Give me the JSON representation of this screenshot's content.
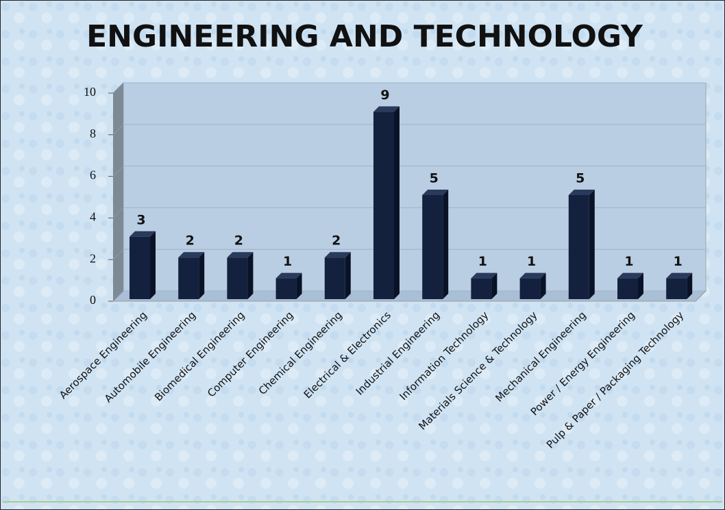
{
  "chart_data": {
    "type": "bar3d",
    "title": "ENGINEERING AND TECHNOLOGY",
    "categories": [
      "Aerospace Engineering",
      "Automobile Engineering",
      "Biomedical Engineering",
      "Computer Engineering",
      "Chemical Engineering",
      "Electrical & Electronics",
      "Industrial Engineering",
      "Information Technology",
      "Materials Science & Technology",
      "Mechanical Engineering",
      "Power / Energy Engineering",
      "Pulp & Paper / Packaging Technology"
    ],
    "values": [
      3,
      2,
      2,
      1,
      2,
      9,
      5,
      1,
      1,
      5,
      1,
      1
    ],
    "color": "#13213f",
    "ylim": [
      0,
      10
    ],
    "yticks": [
      0,
      2,
      4,
      6,
      8,
      10
    ],
    "grid": true
  }
}
